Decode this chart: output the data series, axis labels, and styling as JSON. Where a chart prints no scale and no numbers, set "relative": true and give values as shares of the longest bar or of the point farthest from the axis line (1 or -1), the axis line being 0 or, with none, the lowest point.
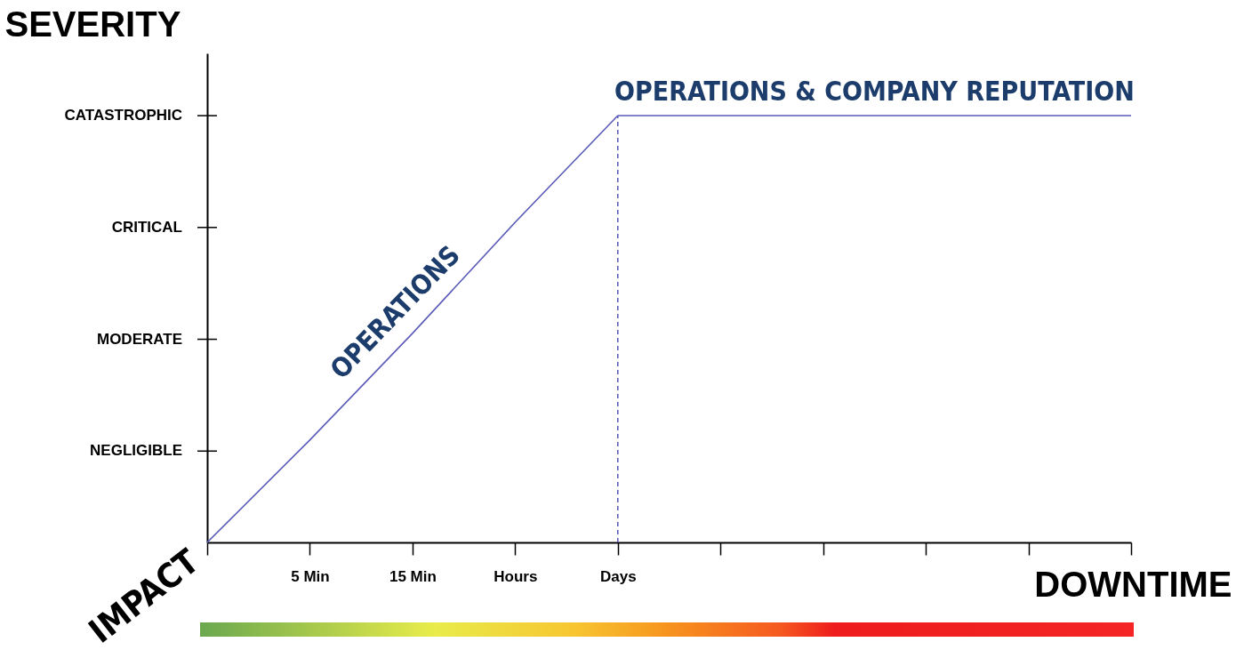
{
  "chart_data": {
    "type": "line",
    "relative": true,
    "ylabel": "SEVERITY",
    "xlabel": "DOWNTIME",
    "annotations": [
      "IMPACT",
      "NEGLIGIBLE",
      "MODERATE",
      "CRITICAL",
      "CATASTROPHIC"
    ],
    "categories": [
      null,
      "5 Min",
      "15 Min",
      "Hours",
      "Days",
      null,
      null,
      null,
      null,
      null
    ],
    "series": [
      {
        "name": "OPERATIONS",
        "color": "#5a5ab8",
        "values": [
          0,
          0.24,
          0.49,
          0.75,
          1,
          null,
          null,
          null,
          null,
          null
        ]
      },
      {
        "name": "OPERATIONS & COMPANY REPUTATION",
        "color": "#5a5ab8",
        "values": [
          null,
          null,
          null,
          null,
          1,
          1,
          1,
          1,
          1,
          1
        ]
      }
    ],
    "ref_lines": [
      {
        "axis": "x",
        "value": "Days",
        "color": "#5a5ab8",
        "line_style": "dashed"
      }
    ],
    "grid": false,
    "marker": "none",
    "line_style": "solid"
  }
}
